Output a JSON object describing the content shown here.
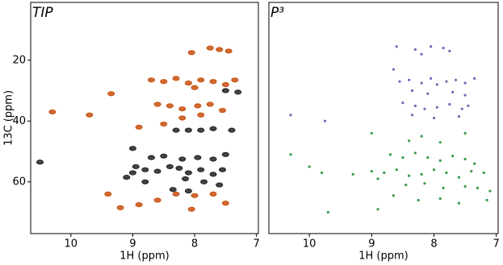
{
  "chart_data": [
    {
      "type": "scatter",
      "title": "TIP",
      "xlabel": "1H (ppm)",
      "ylabel": "13C (ppm)",
      "xlim": [
        10.65,
        6.97
      ],
      "ylim": [
        77,
        1
      ],
      "xticks": [
        10,
        9,
        8,
        7
      ],
      "yticks": [
        20,
        40,
        60
      ],
      "series": [
        {
          "color": "#c8500f",
          "x": [
            7.6,
            7.75,
            7.45,
            8.05,
            8.7,
            8.5,
            8.3,
            8.1,
            7.9,
            7.7,
            7.5,
            7.35,
            8.0,
            9.35,
            8.6,
            8.4,
            8.2,
            7.95,
            7.75,
            7.55,
            7.9,
            8.2,
            8.9,
            8.5,
            9.2,
            8.9,
            8.6,
            8.3,
            8.0,
            7.7,
            7.5,
            8.05,
            10.3,
            9.7,
            9.4
          ],
          "y": [
            16.5,
            16,
            17,
            17.5,
            26.5,
            27,
            26,
            27.5,
            26.5,
            27,
            28,
            26.5,
            29,
            31,
            34.5,
            35,
            36,
            35,
            34.5,
            36.5,
            38,
            39,
            42,
            41,
            68.5,
            67.5,
            66,
            64,
            64.5,
            64,
            67,
            69,
            37,
            38,
            64
          ]
        },
        {
          "color": "#222222",
          "x": [
            7.3,
            7.5,
            8.3,
            8.1,
            7.9,
            7.7,
            7.4,
            8.7,
            8.5,
            8.2,
            7.95,
            7.7,
            7.5,
            9.0,
            8.8,
            8.6,
            8.4,
            8.25,
            8.1,
            7.9,
            7.7,
            7.55,
            9.1,
            8.95,
            8.15,
            7.85,
            7.6,
            8.35,
            8.1,
            10.5,
            9.0,
            8.8
          ],
          "y": [
            30.5,
            30,
            43,
            43,
            43,
            42.5,
            43,
            52,
            51.5,
            52.5,
            52,
            52.5,
            51,
            57,
            56,
            56.5,
            55,
            55.5,
            57,
            56,
            57.5,
            56,
            58.5,
            55,
            59,
            60,
            61,
            62.5,
            63,
            53.5,
            49,
            60
          ]
        }
      ]
    },
    {
      "type": "scatter",
      "title": "P³",
      "xlabel": "1H (ppm)",
      "xlim": [
        10.65,
        6.97
      ],
      "ylim": [
        77,
        1
      ],
      "xticks": [
        10,
        9,
        8,
        7
      ],
      "series": [
        {
          "color": "#7b62b8",
          "x": [
            8.6,
            8.3,
            8.2,
            8.05,
            7.85,
            7.75,
            8.65,
            8.55,
            8.4,
            8.2,
            8.05,
            7.95,
            7.8,
            7.65,
            7.5,
            7.35,
            8.35,
            8.1,
            7.7,
            7.5,
            8.5,
            8.3,
            8.15,
            7.95,
            7.75,
            7.55,
            7.45,
            8.35,
            8.0,
            7.6,
            10.3,
            9.75
          ],
          "y": [
            15.5,
            16.5,
            18,
            15.5,
            16,
            17,
            23,
            27,
            26.5,
            27.5,
            26,
            28,
            27,
            26.5,
            27.5,
            26,
            30,
            31,
            30.5,
            31.5,
            34,
            35,
            36,
            35.5,
            34.5,
            36,
            35,
            38,
            39,
            38.5,
            38,
            40
          ]
        },
        {
          "color": "#3a9a4a",
          "x": [
            9.0,
            8.2,
            7.5,
            8.4,
            7.9,
            8.7,
            8.5,
            8.3,
            8.1,
            7.9,
            7.7,
            7.5,
            7.35,
            9.0,
            8.8,
            8.6,
            8.4,
            8.2,
            8.0,
            7.8,
            7.6,
            7.4,
            7.2,
            9.3,
            9.8,
            8.9,
            8.45,
            8.15,
            7.85,
            7.5,
            7.3,
            7.1,
            8.65,
            8.25,
            7.9,
            7.6,
            7.15,
            8.9,
            10.3,
            10.0,
            9.7
          ],
          "y": [
            44,
            45,
            44,
            46.5,
            47,
            51,
            52,
            50.5,
            52,
            53,
            51.5,
            52.5,
            54,
            56.5,
            57,
            56,
            58,
            57.5,
            56,
            57,
            58.5,
            56.5,
            57,
            57.5,
            57,
            59,
            61,
            60.5,
            62,
            61.5,
            62,
            63,
            64.5,
            66,
            65.5,
            67,
            66,
            69,
            51,
            55,
            70
          ]
        }
      ]
    }
  ]
}
